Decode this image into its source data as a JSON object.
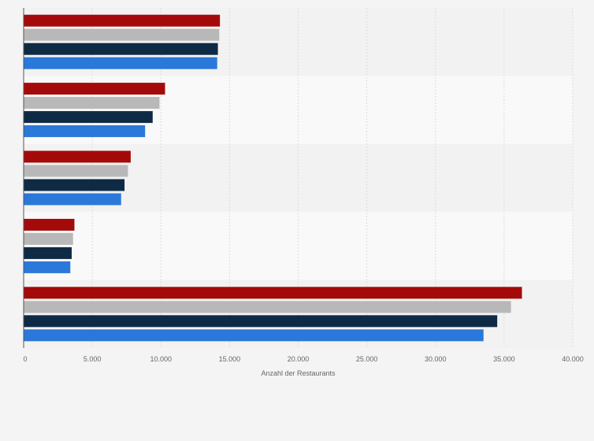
{
  "chart_data": {
    "type": "bar",
    "orientation": "horizontal",
    "categories": [
      "",
      "",
      "",
      "",
      ""
    ],
    "series": [
      {
        "color": "#a50a0a",
        "values": [
          14300,
          10300,
          7800,
          3700,
          36300
        ]
      },
      {
        "color": "#b8b8b8",
        "values": [
          14250,
          9900,
          7600,
          3600,
          35500
        ]
      },
      {
        "color": "#0f2a44",
        "values": [
          14150,
          9400,
          7350,
          3500,
          34500
        ]
      },
      {
        "color": "#2a78d9",
        "values": [
          14100,
          8850,
          7100,
          3400,
          33500
        ]
      }
    ],
    "xlabel": "Anzahl der Restaurants",
    "xlim": [
      0,
      40000
    ],
    "xticks": [
      0,
      5000,
      10000,
      15000,
      20000,
      25000,
      30000,
      35000,
      40000
    ],
    "xtick_labels": [
      "0",
      "5.000",
      "10.000",
      "15.000",
      "20.000",
      "25.000",
      "30.000",
      "35.000",
      "40.000"
    ],
    "grid": true,
    "legend": "none"
  }
}
